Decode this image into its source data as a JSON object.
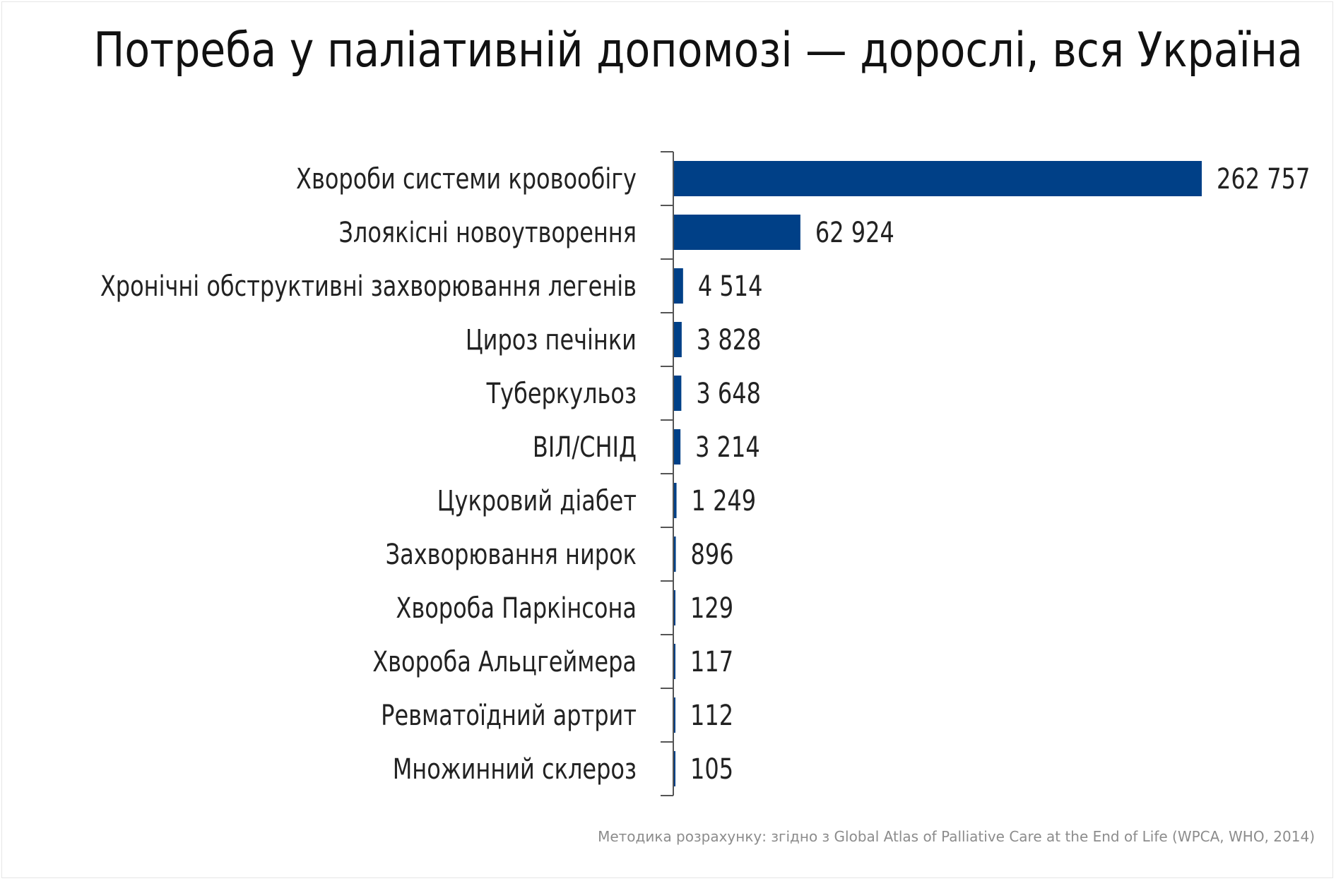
{
  "chart_data": {
    "type": "bar",
    "orientation": "horizontal",
    "title": "Потреба у паліативній допомозі — дорослі, вся Україна",
    "categories": [
      "Хвороби системи кровообігу",
      "Злоякісні новоутворення",
      "Хронічні обструктивні захворювання легенів",
      "Цироз печінки",
      "Туберкульоз",
      "ВІЛ/СНІД",
      "Цукровий діабет",
      "Захворювання нирок",
      "Хвороба Паркінсона",
      "Хвороба Альцгеймера",
      "Ревматоїдний артрит",
      "Множинний склероз"
    ],
    "values": [
      262757,
      62924,
      4514,
      3828,
      3648,
      3214,
      1249,
      896,
      129,
      117,
      112,
      105
    ],
    "value_labels": [
      "262 757",
      "62 924",
      "4 514",
      "3 828",
      "3 648",
      "3 214",
      "1 249",
      "896",
      "129",
      "117",
      "112",
      "105"
    ],
    "xlim": [
      0,
      262757
    ],
    "bar_color": "#004087",
    "axis_color": "#555555",
    "grid": false,
    "legend": "none"
  },
  "footer": {
    "source": "Методика розрахунку: згідно з Global Atlas of Palliative Care at the End of Life (WPCA, WHO, 2014)"
  }
}
